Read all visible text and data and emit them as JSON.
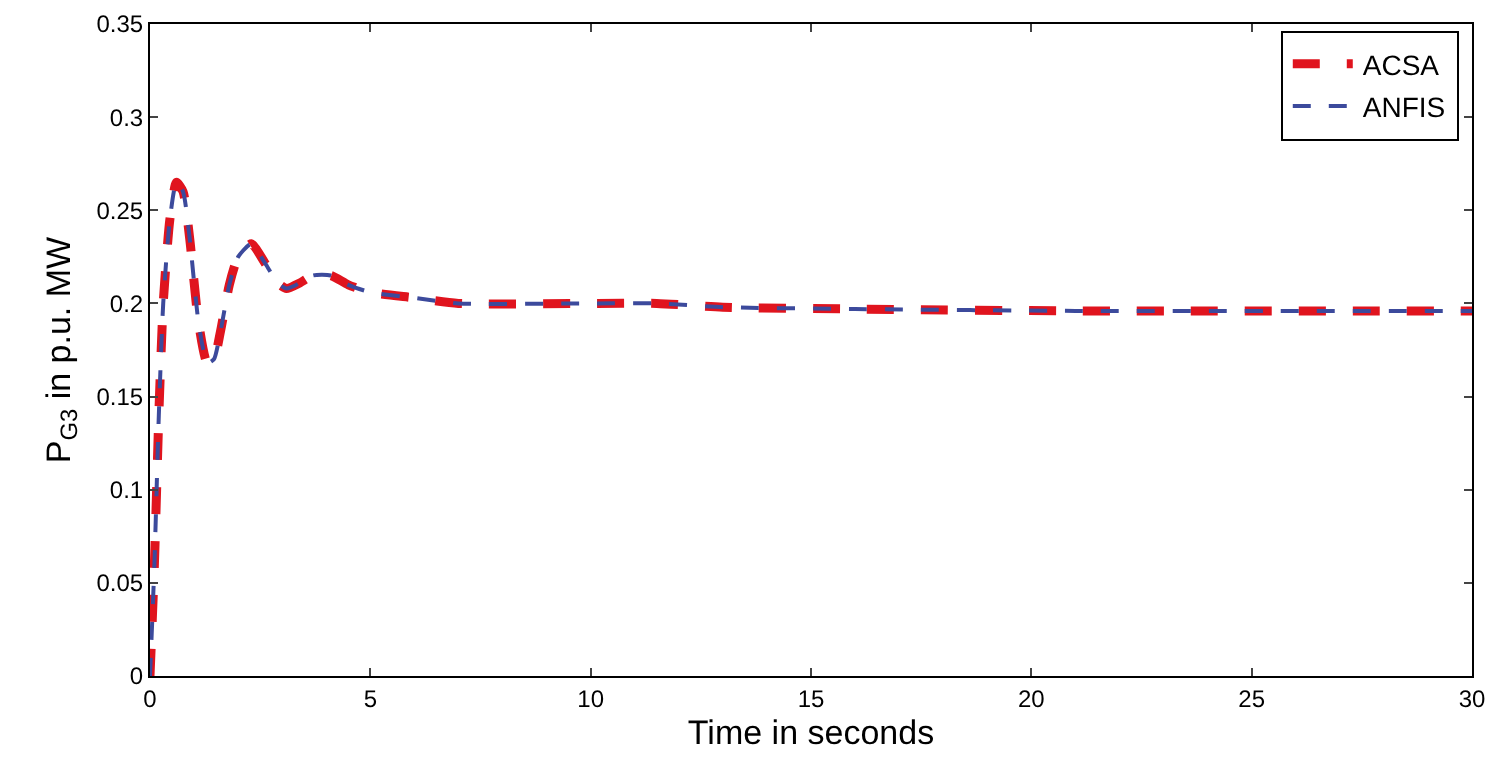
{
  "chart_data": {
    "type": "line",
    "xlabel": "Time in seconds",
    "ylabel": "P$_{G3}$ in p.u. MW",
    "x": [
      0,
      0.1,
      0.2,
      0.3,
      0.45,
      0.6,
      0.75,
      0.9,
      1.1,
      1.3,
      1.45,
      1.6,
      1.8,
      2.0,
      2.3,
      2.6,
      2.9,
      3.1,
      3.4,
      3.7,
      4.1,
      4.5,
      5,
      6,
      7,
      10,
      11.5,
      13,
      16,
      21,
      30
    ],
    "series": [
      {
        "name": "ACSA",
        "color": "#e0141e",
        "values": [
          0,
          0.06,
          0.14,
          0.2,
          0.245,
          0.265,
          0.26,
          0.235,
          0.19,
          0.168,
          0.17,
          0.185,
          0.21,
          0.225,
          0.232,
          0.222,
          0.211,
          0.208,
          0.211,
          0.215,
          0.215,
          0.21,
          0.206,
          0.203,
          0.2,
          0.2,
          0.2,
          0.198,
          0.197,
          0.196,
          0.196
        ]
      },
      {
        "name": "ANFIS",
        "color": "#3c4a9c",
        "values": [
          0,
          0.06,
          0.14,
          0.2,
          0.245,
          0.265,
          0.26,
          0.235,
          0.19,
          0.168,
          0.17,
          0.185,
          0.21,
          0.225,
          0.232,
          0.222,
          0.211,
          0.208,
          0.211,
          0.215,
          0.215,
          0.21,
          0.206,
          0.203,
          0.2,
          0.2,
          0.2,
          0.198,
          0.197,
          0.196,
          0.196
        ]
      }
    ],
    "xlim": [
      0,
      30
    ],
    "xticks": [
      0,
      5,
      10,
      15,
      20,
      25,
      30
    ],
    "ylim": [
      0,
      0.35
    ],
    "yticks": [
      0,
      0.05,
      0.1,
      0.15,
      0.2,
      0.25,
      0.3,
      0.35
    ],
    "grid": false,
    "legend": "top right",
    "line_style": "dashed",
    "marker": "none"
  }
}
